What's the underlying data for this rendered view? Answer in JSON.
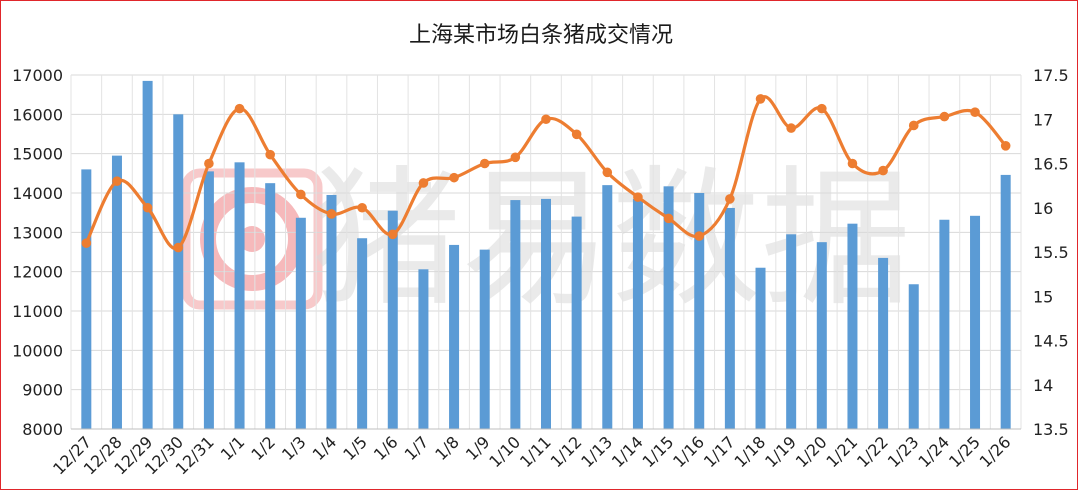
{
  "chart_data": {
    "type": "bar+line",
    "title": "上海某市场白条猪成交情况",
    "watermark": "猪易数据",
    "categories": [
      "12/27",
      "12/28",
      "12/29",
      "12/30",
      "12/31",
      "1/1",
      "1/2",
      "1/3",
      "1/4",
      "1/5",
      "1/6",
      "1/7",
      "1/8",
      "1/9",
      "1/10",
      "1/11",
      "1/12",
      "1/13",
      "1/14",
      "1/15",
      "1/16",
      "1/17",
      "1/18",
      "1/19",
      "1/20",
      "1/21",
      "1/22",
      "1/23",
      "1/24",
      "1/25",
      "1/26"
    ],
    "left_axis": {
      "ylim": [
        8000,
        17000
      ],
      "ticks": [
        "8000",
        "9000",
        "10000",
        "11000",
        "12000",
        "13000",
        "14000",
        "15000",
        "16000",
        "17000"
      ]
    },
    "right_axis": {
      "ylim": [
        13.5,
        17.5
      ],
      "ticks": [
        "13.5",
        "14",
        "14.5",
        "15",
        "15.5",
        "16",
        "16.5",
        "17",
        "17.5"
      ]
    },
    "series": [
      {
        "kind": "bar",
        "axis": "left",
        "color": "#5b9bd5",
        "values": [
          14600,
          14950,
          16850,
          16000,
          14550,
          14780,
          14250,
          13370,
          13950,
          12850,
          13550,
          12060,
          12680,
          12560,
          13820,
          13850,
          13400,
          14200,
          13850,
          14170,
          14000,
          13620,
          12100,
          12950,
          12750,
          13220,
          12350,
          11680,
          13320,
          13420,
          14460
        ]
      },
      {
        "kind": "line",
        "axis": "right",
        "color": "#ed7d31",
        "values": [
          15.6,
          16.3,
          16.0,
          15.55,
          16.5,
          17.12,
          16.6,
          16.15,
          15.93,
          16.0,
          15.7,
          16.28,
          16.34,
          16.5,
          16.57,
          17.0,
          16.83,
          16.4,
          16.12,
          15.88,
          15.68,
          16.1,
          17.23,
          16.9,
          17.12,
          16.5,
          16.42,
          16.93,
          17.03,
          17.08,
          16.7
        ]
      }
    ],
    "grid": true,
    "legend": "none"
  }
}
